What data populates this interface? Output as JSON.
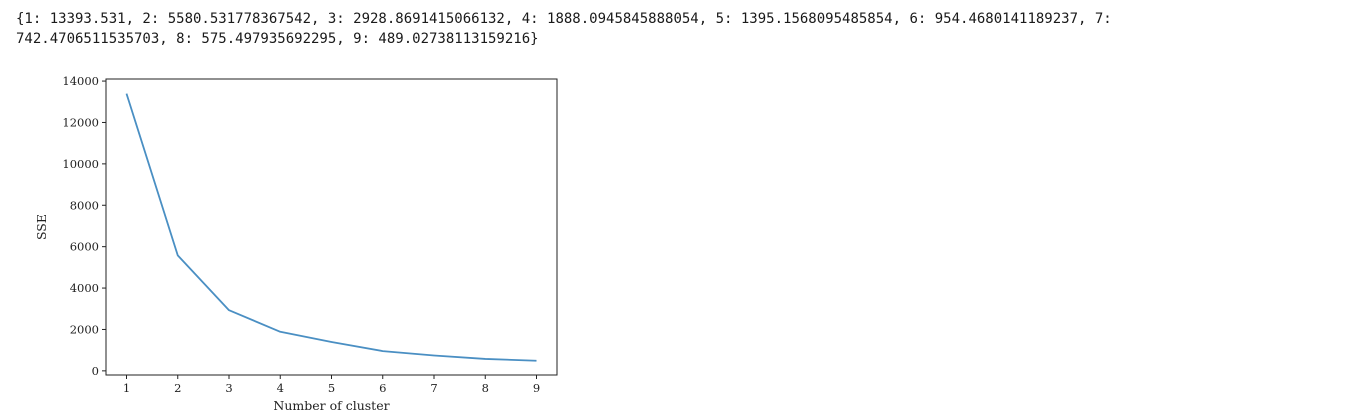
{
  "output": {
    "line1": "{1: 13393.531, 2: 5580.531778367542, 3: 2928.8691415066132, 4: 1888.0945845888054, 5: 1395.1568095485854, 6: 954.4680141189237, 7:",
    "line2": "742.4706511535703, 8: 575.497935692295, 9: 489.02738113159216}"
  },
  "chart_data": {
    "type": "line",
    "title": "",
    "xlabel": "Number of cluster",
    "ylabel": "SSE",
    "x": [
      1,
      2,
      3,
      4,
      5,
      6,
      7,
      8,
      9
    ],
    "series": [
      {
        "values": [
          13393.531,
          5580.531778367542,
          2928.8691415066132,
          1888.0945845888054,
          1395.1568095485854,
          954.4680141189237,
          742.4706511535703,
          575.497935692295,
          489.02738113159216
        ]
      }
    ],
    "xticks": [
      1,
      2,
      3,
      4,
      5,
      6,
      7,
      8,
      9
    ],
    "yticks": [
      0,
      2000,
      4000,
      6000,
      8000,
      10000,
      12000,
      14000
    ],
    "xlim": [
      0.6,
      9.4
    ],
    "ylim": [
      -200,
      14100
    ],
    "grid": false,
    "line_color": "#4a8fc3"
  }
}
